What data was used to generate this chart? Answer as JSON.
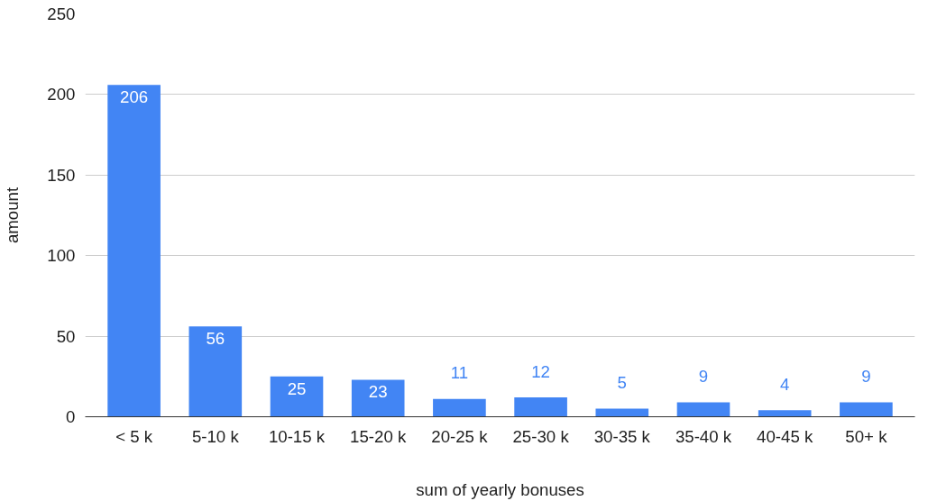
{
  "chart_data": {
    "type": "bar",
    "xlabel": "sum of yearly bonuses",
    "ylabel": "amount",
    "categories": [
      "< 5 k",
      "5-10 k",
      "10-15 k",
      "15-20 k",
      "20-25 k",
      "25-30 k",
      "30-35 k",
      "35-40 k",
      "40-45 k",
      "50+ k"
    ],
    "values": [
      206,
      56,
      25,
      23,
      11,
      12,
      5,
      9,
      4,
      9
    ],
    "color": "#4285f4",
    "ylim": [
      0,
      250
    ],
    "yticks": [
      0,
      50,
      100,
      150,
      200,
      250
    ],
    "grid": "y",
    "data_labels": true
  }
}
